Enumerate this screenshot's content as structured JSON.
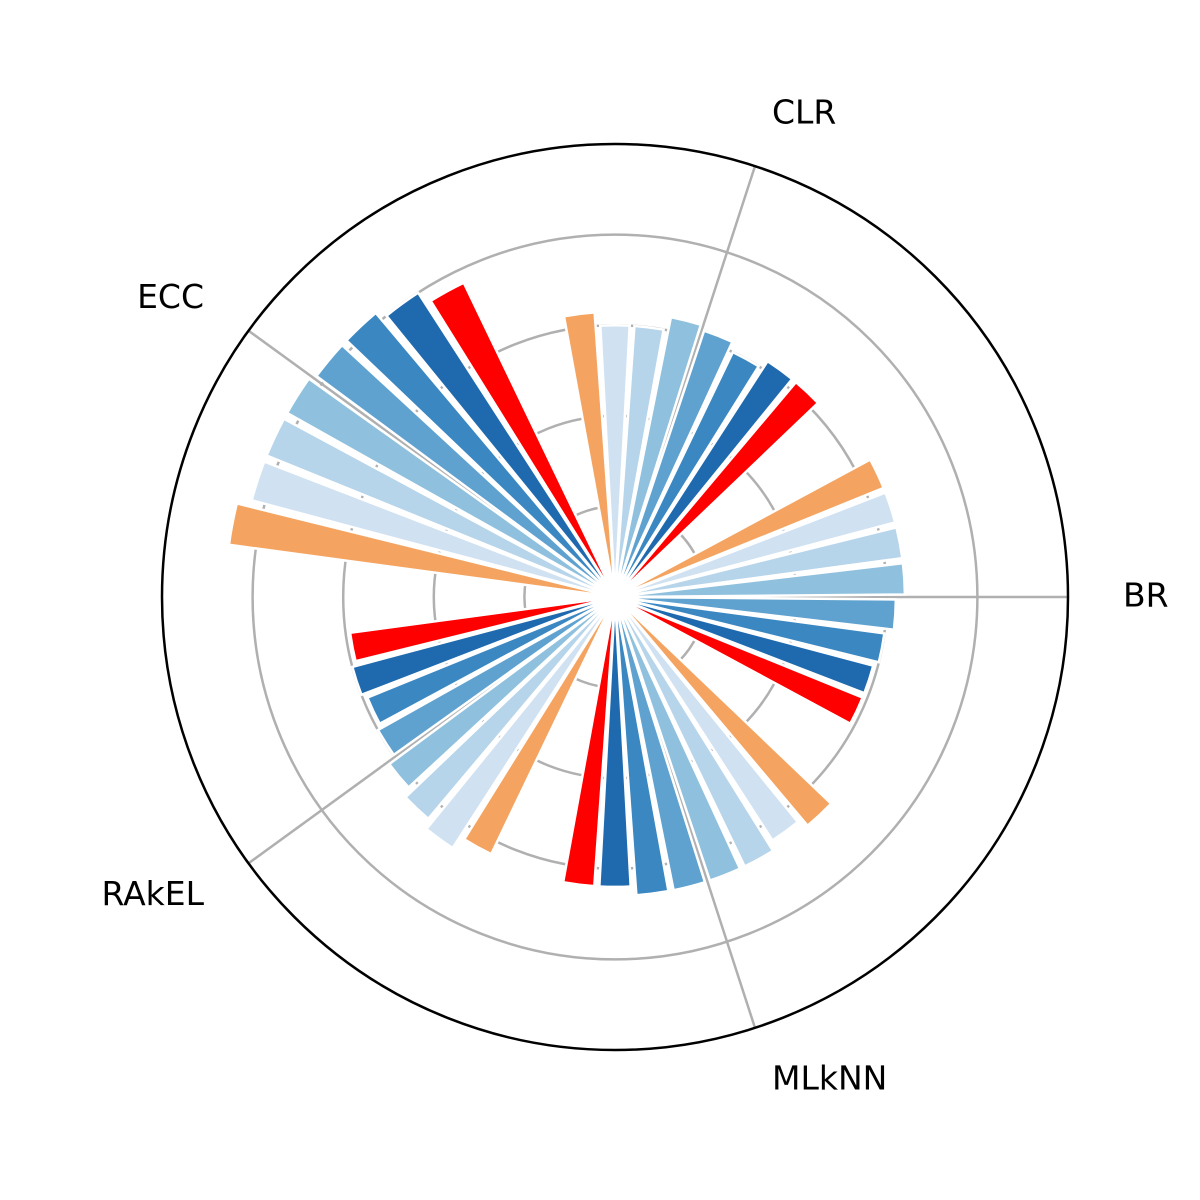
{
  "chart_data": {
    "type": "bar",
    "subtype": "polar-grouped-bar",
    "categories": [
      "BR",
      "CLR",
      "ECC",
      "RAkEL",
      "MLkNN"
    ],
    "ylim": [
      0,
      5
    ],
    "grid": true,
    "series": [
      {
        "color": "#f4a460",
        "values": [
          3.2,
          3.15,
          4.3,
          3.15,
          3.3
        ]
      },
      {
        "color": "#d0e1f2",
        "values": [
          3.2,
          3.0,
          4.15,
          3.3,
          3.2
        ]
      },
      {
        "color": "#b6d4ea",
        "values": [
          3.2,
          3.0,
          4.15,
          3.2,
          3.3
        ]
      },
      {
        "color": "#8fc1de",
        "values": [
          3.2,
          3.15,
          4.15,
          3.1,
          3.3
        ]
      },
      {
        "color": "#5fa2d0",
        "values": [
          3.1,
          3.1,
          4.1,
          3.0,
          3.3
        ]
      },
      {
        "color": "#3a87c2",
        "values": [
          3.0,
          3.0,
          4.1,
          2.95,
          3.3
        ]
      },
      {
        "color": "#1f6aae",
        "values": [
          2.95,
          3.1,
          4.0,
          3.0,
          3.2
        ]
      },
      {
        "color": "#ff0000",
        "values": [
          2.95,
          3.1,
          3.85,
          2.95,
          3.2
        ]
      }
    ]
  }
}
